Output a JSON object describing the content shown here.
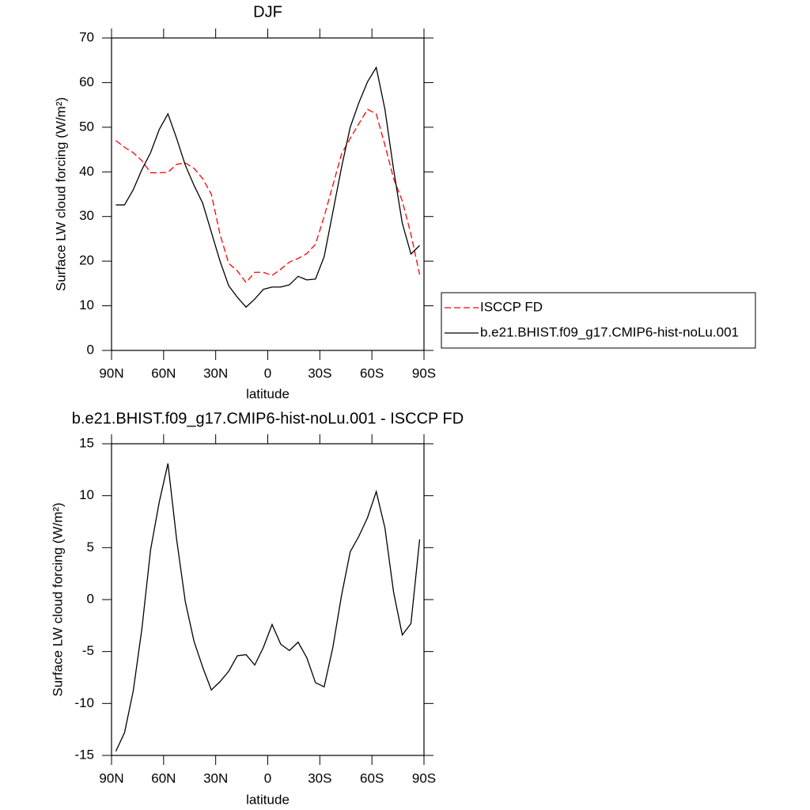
{
  "chart_data": [
    {
      "type": "line",
      "title": "DJF",
      "xlabel": "latitude",
      "ylabel": "Surface LW cloud forcing (W/m²)",
      "x": [
        87.5,
        82.5,
        77.5,
        72.5,
        67.5,
        62.5,
        57.5,
        52.5,
        47.5,
        42.5,
        37.5,
        32.5,
        27.5,
        22.5,
        17.5,
        12.5,
        7.5,
        2.5,
        -2.5,
        -7.5,
        -12.5,
        -17.5,
        -22.5,
        -27.5,
        -32.5,
        -37.5,
        -42.5,
        -47.5,
        -52.5,
        -57.5,
        -62.5,
        -67.5,
        -72.5,
        -77.5,
        -82.5,
        -87.5
      ],
      "series": [
        {
          "name": "ISCCP FD",
          "color": "#ff0000",
          "dash": "dashed",
          "values": [
            47,
            45.5,
            44.3,
            42.5,
            39.8,
            39.8,
            39.9,
            41.7,
            42,
            40.8,
            38.5,
            35,
            26,
            19.5,
            17.8,
            15.2,
            17.5,
            17.5,
            16.8,
            18.2,
            19.8,
            20.6,
            21.7,
            23.8,
            30,
            37,
            44,
            47.5,
            50.8,
            54,
            53,
            46,
            38.5,
            33.5,
            26,
            17
          ]
        },
        {
          "name": "b.e21.BHIST.f09_g17.CMIP6-hist-noLu.001",
          "color": "#000000",
          "dash": "solid",
          "values": [
            32.6,
            32.6,
            36,
            40.5,
            44.3,
            49.5,
            53,
            47.5,
            41.5,
            37,
            33,
            26.5,
            20,
            14.5,
            11.9,
            9.7,
            11.5,
            13.7,
            14.2,
            14.2,
            14.7,
            16.6,
            15.8,
            16,
            21,
            31,
            41,
            50,
            55.5,
            60.2,
            63.4,
            54,
            40.5,
            28.5,
            21.6,
            23.5
          ]
        }
      ],
      "xlim": [
        90,
        -90
      ],
      "xticks": [
        {
          "value": 90,
          "label": "90N"
        },
        {
          "value": 60,
          "label": "60N"
        },
        {
          "value": 30,
          "label": "30N"
        },
        0,
        {
          "value": -30,
          "label": "30S"
        },
        {
          "value": -60,
          "label": "60S"
        },
        {
          "value": -90,
          "label": "90S"
        }
      ],
      "ylim": [
        0,
        70
      ],
      "yticks": [
        0,
        10,
        20,
        30,
        40,
        50,
        60,
        70
      ],
      "legend": "right",
      "grid": false
    },
    {
      "type": "line",
      "title": "b.e21.BHIST.f09_g17.CMIP6-hist-noLu.001 - ISCCP FD",
      "xlabel": "latitude",
      "ylabel": "Surface LW cloud forcing (W/m²)",
      "x": [
        87.5,
        82.5,
        77.5,
        72.5,
        67.5,
        62.5,
        57.5,
        52.5,
        47.5,
        42.5,
        37.5,
        32.5,
        27.5,
        22.5,
        17.5,
        12.5,
        7.5,
        2.5,
        -2.5,
        -7.5,
        -12.5,
        -17.5,
        -22.5,
        -27.5,
        -32.5,
        -37.5,
        -42.5,
        -47.5,
        -52.5,
        -57.5,
        -62.5,
        -67.5,
        -72.5,
        -77.5,
        -82.5,
        -87.5
      ],
      "values": [
        -14.6,
        -12.8,
        -8.8,
        -2.8,
        4.8,
        9.4,
        13.1,
        5.8,
        -0.2,
        -4.0,
        -6.5,
        -8.7,
        -7.9,
        -6.9,
        -5.4,
        -5.3,
        -6.3,
        -4.6,
        -2.4,
        -4.3,
        -4.9,
        -4.1,
        -5.6,
        -8.0,
        -8.4,
        -4.6,
        0.4,
        4.6,
        6.1,
        7.9,
        10.4,
        6.9,
        0.7,
        -3.4,
        -2.3,
        5.8
      ],
      "color": "#000000",
      "xlim": [
        90,
        -90
      ],
      "xticks": [
        {
          "value": 90,
          "label": "90N"
        },
        {
          "value": 60,
          "label": "60N"
        },
        {
          "value": 30,
          "label": "30N"
        },
        0,
        {
          "value": -30,
          "label": "30S"
        },
        {
          "value": -60,
          "label": "60S"
        },
        {
          "value": -90,
          "label": "90S"
        }
      ],
      "ylim": [
        -15,
        15
      ],
      "yticks": [
        -15,
        -10,
        -5,
        0,
        5,
        10,
        15
      ],
      "grid": false
    }
  ]
}
